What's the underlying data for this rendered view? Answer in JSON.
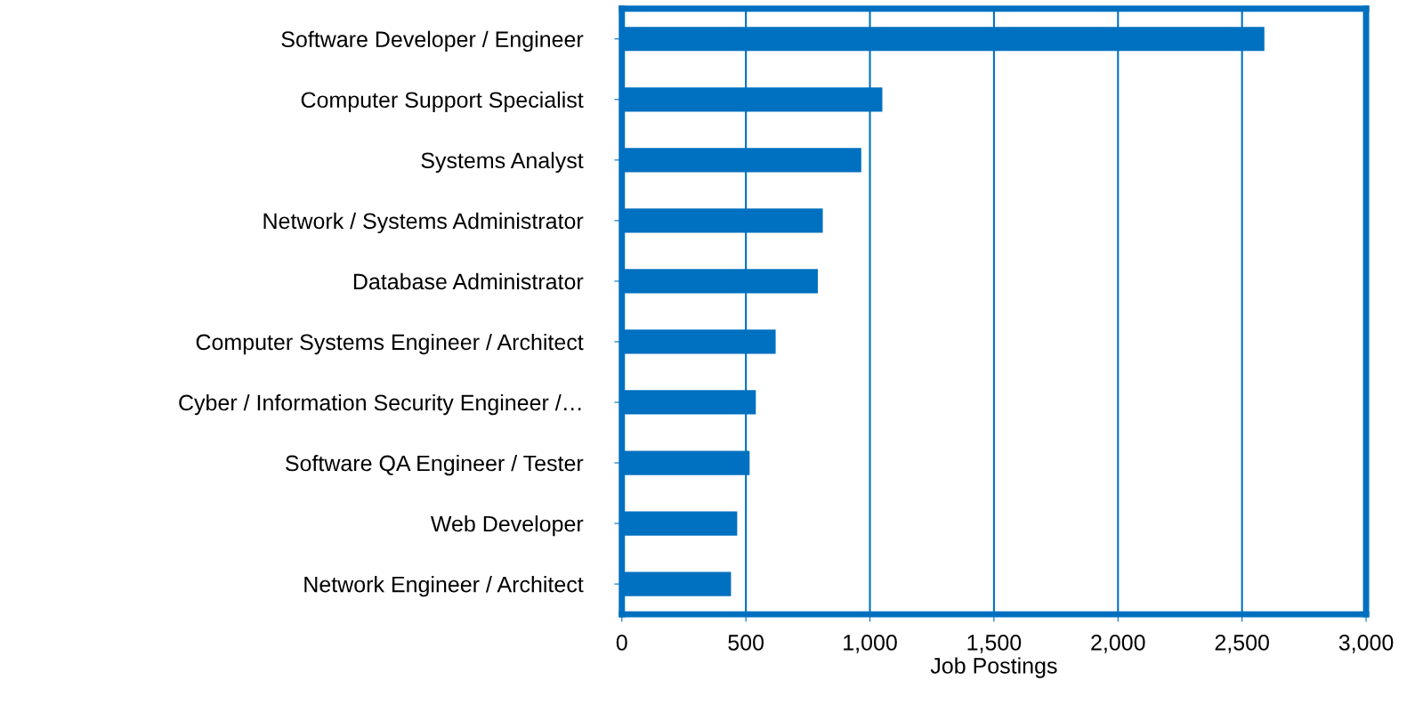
{
  "chart_data": {
    "type": "bar",
    "orientation": "horizontal",
    "xlabel": "Job Postings",
    "categories": [
      "Software Developer / Engineer",
      "Computer Support Specialist",
      "Systems Analyst",
      "Network / Systems Administrator",
      "Database Administrator",
      "Computer Systems Engineer / Architect",
      "Cyber / Information Security Engineer /…",
      "Software QA Engineer / Tester",
      "Web Developer",
      "Network Engineer / Architect"
    ],
    "values": [
      2590,
      1050,
      965,
      810,
      790,
      620,
      540,
      515,
      465,
      440
    ],
    "color": "#0070c0",
    "xlim": [
      0,
      3000
    ],
    "xticks": [
      {
        "value": 0,
        "label": "0"
      },
      {
        "value": 500,
        "label": "500"
      },
      {
        "value": 1000,
        "label": "1,000"
      },
      {
        "value": 1500,
        "label": "1,500"
      },
      {
        "value": 2000,
        "label": "2,000"
      },
      {
        "value": 2500,
        "label": "2,500"
      },
      {
        "value": 3000,
        "label": "3,000"
      }
    ],
    "grid": "x",
    "legend": false
  }
}
